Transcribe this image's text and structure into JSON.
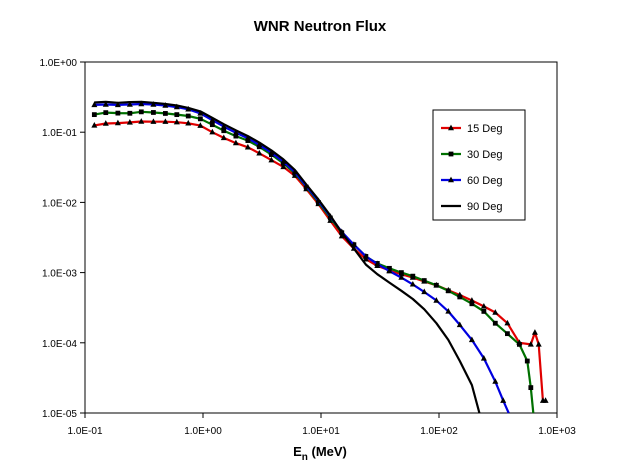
{
  "chart_data": {
    "type": "line",
    "title": "WNR Neutron Flux",
    "xlabel": {
      "main": "E",
      "sub": "n",
      "rest": " (MeV)"
    },
    "ylabel": "",
    "x_scale": "log",
    "y_scale": "log",
    "xlim": [
      0.1,
      1000
    ],
    "ylim": [
      1e-05,
      1
    ],
    "x_tick_labels": [
      "1.0E-01",
      "1.0E+00",
      "1.0E+01",
      "1.0E+02",
      "1.0E+03"
    ],
    "y_tick_labels": [
      "1.0E+00",
      "1.0E-01",
      "1.0E-02",
      "1.0E-03",
      "1.0E-04",
      "1.0E-05"
    ],
    "grid": false,
    "legend_position": "right",
    "series": [
      {
        "name": "15 Deg",
        "color": "#e00000",
        "marker": "triangle",
        "x": [
          0.12,
          0.15,
          0.19,
          0.24,
          0.3,
          0.38,
          0.48,
          0.6,
          0.75,
          0.95,
          1.2,
          1.5,
          1.9,
          2.4,
          3.0,
          3.8,
          4.8,
          6.0,
          7.5,
          9.5,
          12,
          15,
          19,
          24,
          30,
          38,
          48,
          60,
          75,
          95,
          120,
          150,
          190,
          240,
          300,
          380,
          480,
          600,
          650,
          700,
          760,
          800
        ],
        "y": [
          0.125,
          0.133,
          0.135,
          0.138,
          0.142,
          0.141,
          0.141,
          0.139,
          0.134,
          0.124,
          0.1,
          0.083,
          0.07,
          0.061,
          0.05,
          0.04,
          0.032,
          0.024,
          0.0155,
          0.0095,
          0.0055,
          0.0033,
          0.0022,
          0.00155,
          0.00125,
          0.00108,
          0.00095,
          0.00085,
          0.00075,
          0.00066,
          0.00056,
          0.00048,
          0.0004,
          0.00033,
          0.00027,
          0.00019,
          0.0001,
          9.5e-05,
          0.00014,
          9.5e-05,
          1.5e-05,
          1.5e-05
        ]
      },
      {
        "name": "30 Deg",
        "color": "#007000",
        "marker": "square",
        "x": [
          0.12,
          0.15,
          0.19,
          0.24,
          0.3,
          0.38,
          0.48,
          0.6,
          0.75,
          0.95,
          1.2,
          1.5,
          1.9,
          2.4,
          3.0,
          3.8,
          4.8,
          6.0,
          7.5,
          9.5,
          12,
          15,
          19,
          24,
          30,
          38,
          48,
          60,
          75,
          95,
          120,
          150,
          190,
          240,
          300,
          380,
          480,
          560,
          600,
          630
        ],
        "y": [
          0.178,
          0.19,
          0.187,
          0.186,
          0.195,
          0.191,
          0.185,
          0.178,
          0.17,
          0.155,
          0.128,
          0.105,
          0.088,
          0.076,
          0.062,
          0.048,
          0.036,
          0.026,
          0.0165,
          0.01,
          0.006,
          0.0037,
          0.0025,
          0.0017,
          0.00135,
          0.00115,
          0.001,
          0.00089,
          0.00077,
          0.00066,
          0.00055,
          0.00045,
          0.00036,
          0.00028,
          0.00019,
          0.000135,
          9.5e-05,
          5.5e-05,
          2.3e-05,
          1e-05
        ]
      },
      {
        "name": "60 Deg",
        "color": "#0000e0",
        "marker": "triangle",
        "x": [
          0.12,
          0.15,
          0.19,
          0.24,
          0.3,
          0.38,
          0.48,
          0.6,
          0.75,
          0.95,
          1.2,
          1.5,
          1.9,
          2.4,
          3.0,
          3.8,
          4.8,
          6.0,
          7.5,
          9.5,
          12,
          15,
          19,
          24,
          30,
          38,
          48,
          60,
          75,
          95,
          120,
          150,
          190,
          240,
          300,
          350,
          390
        ],
        "y": [
          0.245,
          0.248,
          0.245,
          0.248,
          0.252,
          0.248,
          0.24,
          0.228,
          0.212,
          0.185,
          0.148,
          0.12,
          0.098,
          0.082,
          0.066,
          0.051,
          0.038,
          0.027,
          0.017,
          0.0105,
          0.0063,
          0.0038,
          0.0025,
          0.0017,
          0.00133,
          0.00105,
          0.00085,
          0.00068,
          0.00053,
          0.0004,
          0.00028,
          0.00018,
          0.00011,
          6e-05,
          2.8e-05,
          1.5e-05,
          1e-05
        ]
      },
      {
        "name": "90 Deg",
        "color": "#000000",
        "marker": "none",
        "x": [
          0.12,
          0.15,
          0.19,
          0.24,
          0.3,
          0.38,
          0.48,
          0.6,
          0.75,
          0.95,
          1.2,
          1.5,
          1.9,
          2.4,
          3.0,
          3.8,
          4.8,
          6.0,
          7.5,
          9.5,
          12,
          15,
          19,
          24,
          30,
          38,
          48,
          60,
          75,
          95,
          120,
          150,
          190,
          220
        ],
        "y": [
          0.265,
          0.27,
          0.262,
          0.268,
          0.27,
          0.262,
          0.252,
          0.24,
          0.222,
          0.198,
          0.16,
          0.13,
          0.106,
          0.088,
          0.071,
          0.055,
          0.041,
          0.029,
          0.018,
          0.011,
          0.0065,
          0.0037,
          0.0022,
          0.0013,
          0.00095,
          0.00072,
          0.00055,
          0.00042,
          0.0003,
          0.00019,
          0.00011,
          5.5e-05,
          2.5e-05,
          1e-05
        ]
      }
    ]
  }
}
